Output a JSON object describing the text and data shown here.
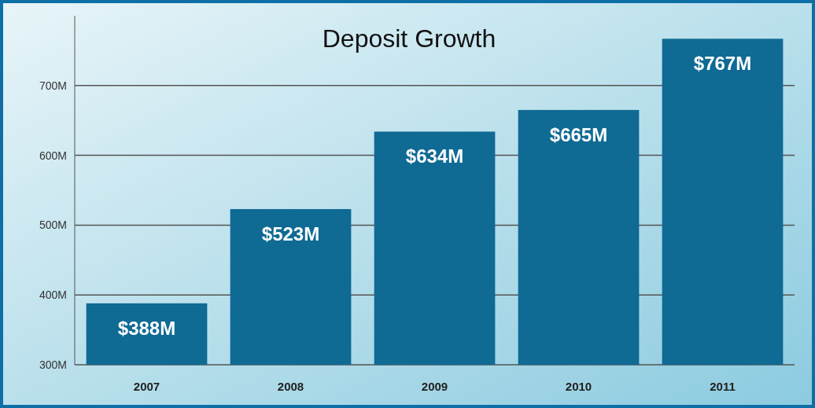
{
  "chart_data": {
    "type": "bar",
    "title": "Deposit Growth",
    "categories": [
      "2007",
      "2008",
      "2009",
      "2010",
      "2011"
    ],
    "values": [
      388,
      523,
      634,
      665,
      767
    ],
    "color": "#0f6a94",
    "value_labels": [
      "$388M",
      "$523M",
      "$634M",
      "$665M",
      "$767M"
    ],
    "ylim": [
      300,
      800
    ],
    "yticks": [
      {
        "value": 300,
        "label": "300M"
      },
      {
        "value": 400,
        "label": "400M"
      },
      {
        "value": 500,
        "label": "500M"
      },
      {
        "value": 600,
        "label": "600M"
      },
      {
        "value": 700,
        "label": "700M"
      }
    ],
    "grid": "y"
  }
}
